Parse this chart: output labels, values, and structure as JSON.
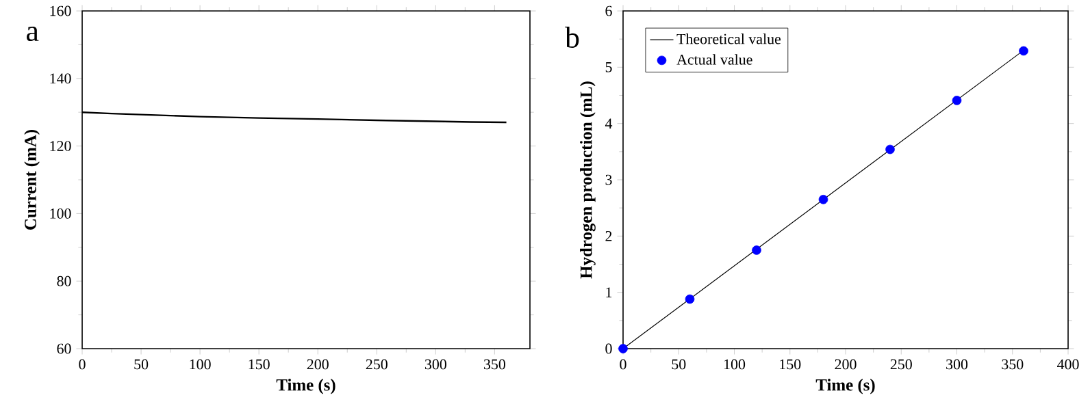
{
  "chart_data": [
    {
      "type": "line",
      "title": "a",
      "xlabel": "Time (s)",
      "ylabel": "Current (mA)",
      "xlim": [
        0,
        380
      ],
      "ylim": [
        60,
        160
      ],
      "xticks": [
        0,
        50,
        100,
        150,
        200,
        250,
        300,
        350
      ],
      "yticks": [
        60,
        80,
        100,
        120,
        140,
        160
      ],
      "grid": false,
      "legend": false,
      "series": [
        {
          "color": "#000000",
          "x": [
            0,
            25,
            50,
            75,
            100,
            150,
            200,
            250,
            300,
            330,
            360
          ],
          "values": [
            130,
            129.6,
            129.3,
            129.0,
            128.7,
            128.3,
            128.0,
            127.6,
            127.3,
            127.1,
            127.0
          ]
        }
      ]
    },
    {
      "type": "line",
      "title": "b",
      "xlabel": "Time (s)",
      "ylabel": "Hydrogen production (mL)",
      "xlim": [
        0,
        400
      ],
      "ylim": [
        0,
        6
      ],
      "xticks": [
        0,
        50,
        100,
        150,
        200,
        250,
        300,
        350,
        400
      ],
      "yticks": [
        0,
        1,
        2,
        3,
        4,
        5,
        6
      ],
      "grid": false,
      "legend": "top left",
      "series": [
        {
          "name": "Theoretical value",
          "color": "#000000",
          "marker": "none",
          "x": [
            0,
            360
          ],
          "values": [
            0,
            5.3
          ]
        },
        {
          "type": "scatter",
          "name": "Actual value",
          "color": "#0000ff",
          "marker": "circle",
          "x": [
            0,
            60,
            120,
            180,
            240,
            300,
            360
          ],
          "values": [
            0,
            0.88,
            1.75,
            2.65,
            3.54,
            4.41,
            5.29
          ]
        }
      ]
    }
  ]
}
